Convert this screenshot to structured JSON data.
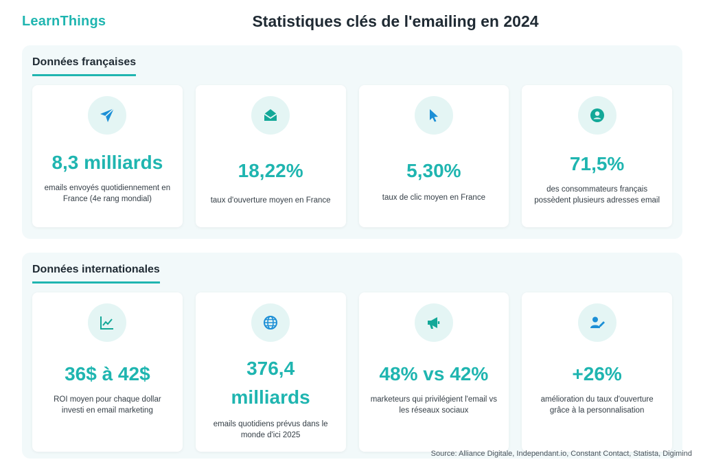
{
  "brand": "LearnThings",
  "title": "Statistiques clés de l'emailing en 2024",
  "sections": {
    "fr": {
      "heading": "Données françaises",
      "cards": [
        {
          "icon": "paper-plane-icon",
          "value": "8,3 milliards",
          "desc": "emails envoyés quotidiennement en France (4e rang mondial)"
        },
        {
          "icon": "open-envelope-icon",
          "value": "18,22%",
          "desc": "taux d'ouverture moyen en France"
        },
        {
          "icon": "mouse-pointer-icon",
          "value": "5,30%",
          "desc": "taux de clic moyen en France"
        },
        {
          "icon": "user-circle-icon",
          "value": "71,5%",
          "desc": "des consommateurs français possèdent plusieurs adresses email"
        }
      ]
    },
    "int": {
      "heading": "Données internationales",
      "cards": [
        {
          "icon": "line-chart-icon",
          "value": "36$ à 42$",
          "desc": "ROI moyen pour chaque dollar investi en email marketing"
        },
        {
          "icon": "globe-icon",
          "value": "376,4 milliards",
          "desc": "emails quotidiens prévus dans le monde d'ici 2025"
        },
        {
          "icon": "megaphone-icon",
          "value": "48% vs 42%",
          "desc": "marketeurs qui privilégient l'email vs les réseaux sociaux"
        },
        {
          "icon": "user-edit-icon",
          "value": "+26%",
          "desc": "amélioration du taux d'ouverture grâce à la personnalisation"
        }
      ]
    }
  },
  "source": "Source: Alliance Digitale, Independant.io, Constant Contact, Statista, Digimind",
  "colors": {
    "accent": "#1fb5b0",
    "blue": "#1c8fd6",
    "section_bg": "#f2f9fa",
    "icon_bg": "#e4f5f4"
  }
}
